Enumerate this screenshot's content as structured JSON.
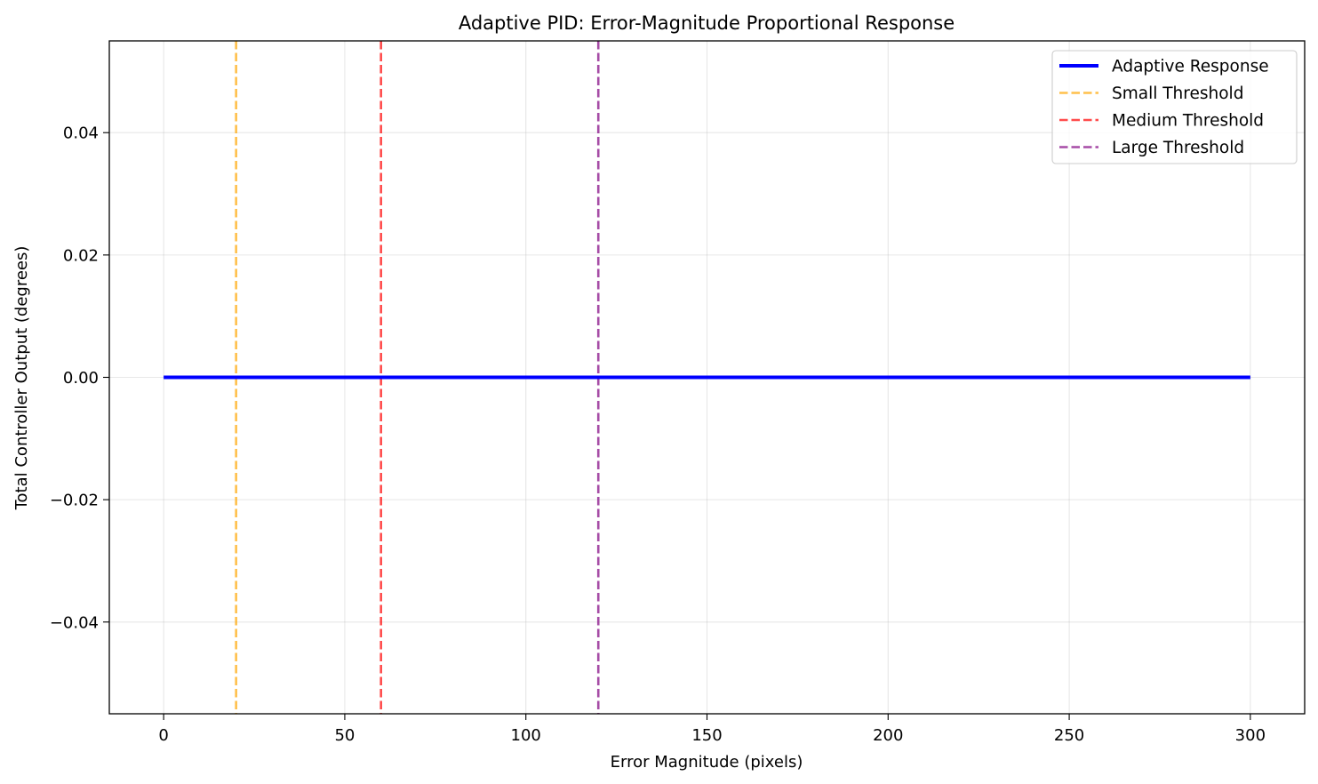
{
  "chart_data": {
    "type": "line",
    "title": "Adaptive PID: Error-Magnitude Proportional Response",
    "xlabel": "Error Magnitude (pixels)",
    "ylabel": "Total Controller Output (degrees)",
    "xlim": [
      -15,
      315
    ],
    "ylim": [
      -0.055,
      0.055
    ],
    "xticks": [
      0,
      50,
      100,
      150,
      200,
      250,
      300
    ],
    "yticks": [
      0.04,
      0.02,
      0.0,
      -0.02,
      -0.04
    ],
    "xtick_labels": [
      "0",
      "50",
      "100",
      "150",
      "200",
      "250",
      "300"
    ],
    "ytick_labels": [
      "0.04",
      "0.02",
      "0.00",
      "−0.02",
      "−0.04"
    ],
    "grid": true,
    "legend_position": "top-right",
    "series": [
      {
        "name": "Adaptive Response",
        "color": "#0000ff",
        "style": "solid",
        "x": [
          0,
          300
        ],
        "y": [
          0,
          0
        ]
      }
    ],
    "vlines": [
      {
        "name": "Small Threshold",
        "x": 20,
        "color": "#ffa500",
        "style": "dashed"
      },
      {
        "name": "Medium Threshold",
        "x": 60,
        "color": "#ff0000",
        "style": "dashed"
      },
      {
        "name": "Large Threshold",
        "x": 120,
        "color": "#800080",
        "style": "dashed"
      }
    ]
  }
}
